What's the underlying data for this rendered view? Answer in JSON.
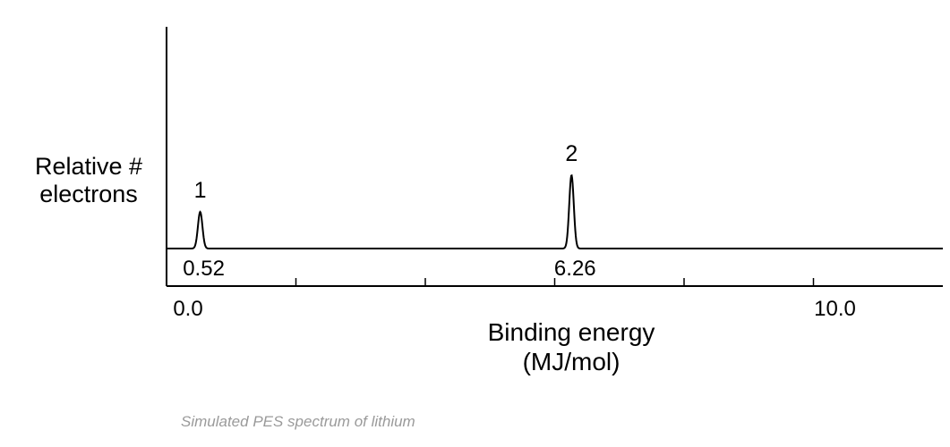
{
  "chart_data": {
    "type": "line",
    "title": "",
    "ylabel_lines": [
      "Relative #",
      "electrons"
    ],
    "xlabel_lines": [
      "Binding energy",
      "(MJ/mol)"
    ],
    "xlim": [
      0,
      12
    ],
    "x_ticks": [
      0,
      2,
      4,
      6,
      8,
      10
    ],
    "x_tick_labels": [
      {
        "value": 0,
        "label": "0.0"
      },
      {
        "value": 10,
        "label": "10.0"
      }
    ],
    "peaks": [
      {
        "energy": 0.52,
        "energy_label": "0.52",
        "peak_label": "1",
        "relative_height": 1
      },
      {
        "energy": 6.26,
        "energy_label": "6.26",
        "peak_label": "2",
        "relative_height": 2
      }
    ],
    "grid": false
  },
  "caption": "Simulated PES spectrum of lithium",
  "colors": {
    "line": "#000000",
    "caption": "#9a9a9a"
  }
}
